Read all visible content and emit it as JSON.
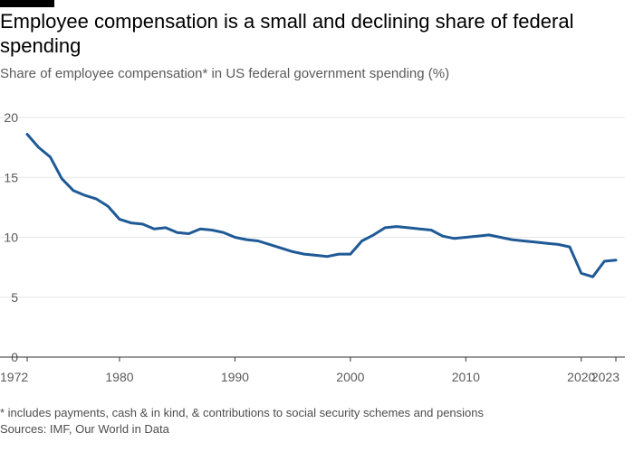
{
  "header": {
    "title": "Employee compensation is a small and declining share of federal spending",
    "subtitle": "Share of employee compensation* in US federal government spending (%)"
  },
  "footer": {
    "note": "* includes payments, cash & in kind, & contributions to social security schemes and pensions",
    "source": "Sources: IMF, Our World in Data"
  },
  "colors": {
    "line": "#1f5a96",
    "grid": "#e6e6e6",
    "axis": "#333333"
  },
  "chart_data": {
    "type": "line",
    "title": "Employee compensation is a small and declining share of federal spending",
    "subtitle": "Share of employee compensation* in US federal government spending (%)",
    "xlabel": "",
    "ylabel": "",
    "xlim": [
      1972,
      2023
    ],
    "ylim": [
      0,
      20
    ],
    "yticks": [
      0,
      5,
      10,
      15,
      20
    ],
    "xticks": [
      1972,
      1980,
      1990,
      2000,
      2010,
      2020,
      2023
    ],
    "grid": true,
    "series": [
      {
        "x": [
          1972,
          1973,
          1974,
          1975,
          1976,
          1977,
          1978,
          1979,
          1980,
          1981,
          1982,
          1983,
          1984,
          1985,
          1986,
          1987,
          1988,
          1989,
          1990,
          1991,
          1992,
          1993,
          1994,
          1995,
          1996,
          1997,
          1998,
          1999,
          2000,
          2001,
          2002,
          2003,
          2004,
          2005,
          2006,
          2007,
          2008,
          2009,
          2010,
          2011,
          2012,
          2013,
          2014,
          2015,
          2016,
          2017,
          2018,
          2019,
          2020,
          2021,
          2022,
          2023
        ],
        "values": [
          18.6,
          17.5,
          16.7,
          14.9,
          13.9,
          13.5,
          13.2,
          12.6,
          11.5,
          11.2,
          11.1,
          10.7,
          10.8,
          10.4,
          10.3,
          10.7,
          10.6,
          10.4,
          10.0,
          9.8,
          9.7,
          9.4,
          9.1,
          8.8,
          8.6,
          8.5,
          8.4,
          8.6,
          8.6,
          9.7,
          10.2,
          10.8,
          10.9,
          10.8,
          10.7,
          10.6,
          10.1,
          9.9,
          10.0,
          10.1,
          10.2,
          10.0,
          9.8,
          9.7,
          9.6,
          9.5,
          9.4,
          9.2,
          7.0,
          6.7,
          8.0,
          8.1
        ]
      }
    ]
  }
}
